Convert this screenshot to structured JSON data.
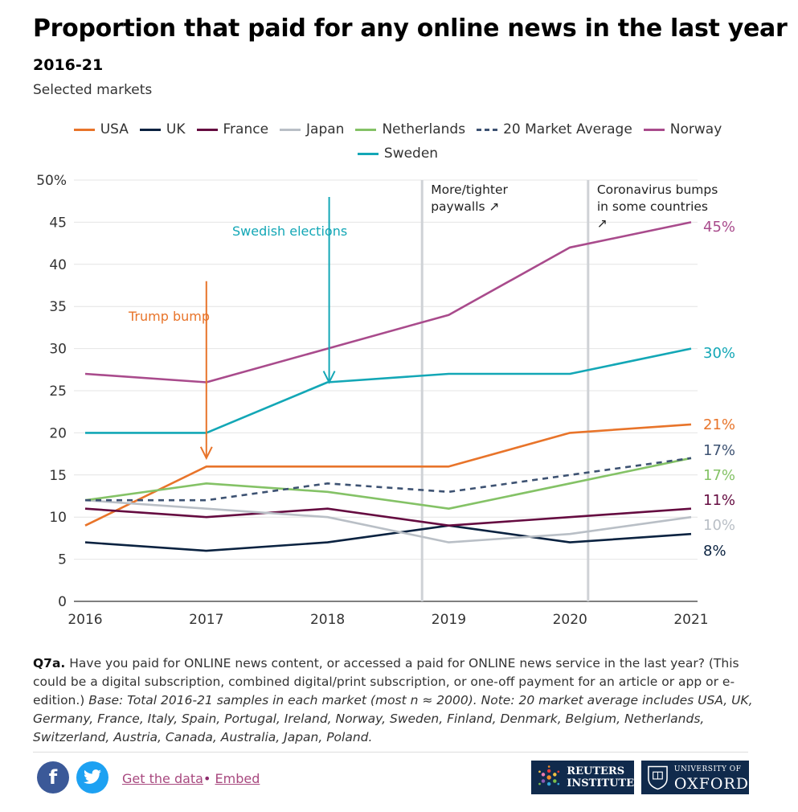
{
  "header": {
    "title": "Proportion that paid for any online news in the last year",
    "subtitle": "2016-21",
    "caption": "Selected markets"
  },
  "chart_data": {
    "type": "line",
    "x": [
      2016,
      2017,
      2018,
      2019,
      2020,
      2021
    ],
    "xticks": [
      "2016",
      "2017",
      "2018",
      "2019",
      "2020",
      "2021"
    ],
    "yticks": [
      "0",
      "5",
      "10",
      "15",
      "20",
      "25",
      "30",
      "35",
      "40",
      "45",
      "50%"
    ],
    "ylim": [
      0,
      50
    ],
    "series": [
      {
        "name": "USA",
        "color": "#e8742a",
        "dashed": false,
        "values": [
          9,
          16,
          16,
          16,
          20,
          21
        ],
        "end_label": "21%"
      },
      {
        "name": "UK",
        "color": "#0a2240",
        "dashed": false,
        "values": [
          7,
          6,
          7,
          9,
          7,
          8
        ],
        "end_label": "8%"
      },
      {
        "name": "France",
        "color": "#650b40",
        "dashed": false,
        "values": [
          11,
          10,
          11,
          9,
          10,
          11
        ],
        "end_label": "11%"
      },
      {
        "name": "Japan",
        "color": "#b9bfc6",
        "dashed": false,
        "values": [
          12,
          11,
          10,
          7,
          8,
          10
        ],
        "end_label": "10%"
      },
      {
        "name": "Netherlands",
        "color": "#84c266",
        "dashed": false,
        "values": [
          12,
          14,
          13,
          11,
          14,
          17
        ],
        "end_label": "17%"
      },
      {
        "name": "20 Market Average",
        "color": "#3d5272",
        "dashed": true,
        "values": [
          12,
          12,
          14,
          13,
          15,
          17
        ],
        "end_label": "17%"
      },
      {
        "name": "Norway",
        "color": "#a94b8c",
        "dashed": false,
        "values": [
          27,
          26,
          30,
          34,
          42,
          45
        ],
        "end_label": "45%"
      },
      {
        "name": "Sweden",
        "color": "#13a7b6",
        "dashed": false,
        "values": [
          20,
          20,
          26,
          27,
          27,
          30
        ],
        "end_label": "30%"
      }
    ],
    "annotations": [
      {
        "text": "Trump bump",
        "color": "#e8742a",
        "arrow_x": 2017,
        "arrow_from": 38,
        "arrow_to": 17
      },
      {
        "text": "Swedish elections",
        "color": "#13a7b6",
        "arrow_x": 2018,
        "arrow_from": 48,
        "arrow_to": 26
      },
      {
        "text": "More/tighter paywalls ↗",
        "line1": "More/tighter",
        "line2": "paywalls ↗",
        "vline_x": 2018.78
      },
      {
        "text": "Coronavirus bumps in some countries ↗",
        "line1": "Coronavirus bumps",
        "line2": "in some countries",
        "line3": "↗",
        "vline_x": 2020.15
      }
    ]
  },
  "footer": {
    "question_label": "Q7a.",
    "question_text": " Have you paid for ONLINE news content, or accessed a paid for ONLINE news service in the last year? (This could be a digital subscription, combined digital/print subscription, or one-off payment for an article or app or e-edition.)",
    "base_text": " Base: Total 2016-21 samples in each market (most n ≈ 2000). Note: 20 market average includes USA, UK, Germany, France, Italy, Spain, Portugal, Ireland, Norway, Sweden, Finland, Denmark, Belgium, Netherlands, Switzerland, Austria, Canada, Australia, Japan, Poland.",
    "get_data": "Get the data",
    "separator": "•",
    "embed": "Embed",
    "facebook_glyph": "f",
    "reuters_logo": [
      "REUTERS",
      "INSTITUTE"
    ],
    "oxford_logo": [
      "UNIVERSITY OF",
      "OXFORD"
    ]
  },
  "colors": {
    "reuters_navy": "#102a4c",
    "facebook": "#3b5998",
    "twitter": "#1da1f2"
  }
}
